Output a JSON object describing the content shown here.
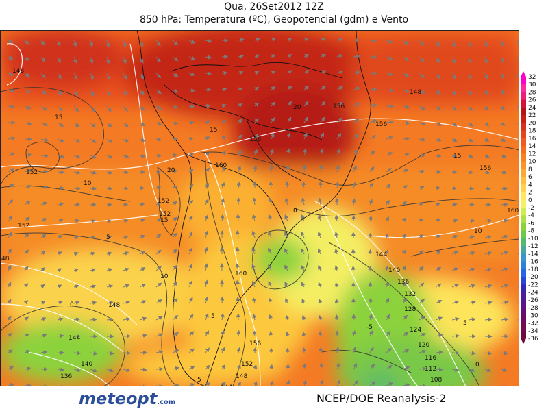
{
  "header": {
    "date_line": "Qua, 26Set2012 12Z",
    "title_line": "850 hPa: Temperatura (ºC), Geopotencial (gdm) e Vento"
  },
  "footer": {
    "logo_main": "meteopt",
    "logo_suffix": ".com",
    "credit": "NCEP/DOE  Reanalysis-2"
  },
  "colorbar": {
    "levels": [
      "32",
      "30",
      "28",
      "26",
      "24",
      "22",
      "20",
      "18",
      "16",
      "14",
      "12",
      "10",
      "8",
      "6",
      "4",
      "2",
      "0",
      "-2",
      "-4",
      "-6",
      "-8",
      "-10",
      "-12",
      "-14",
      "-16",
      "-18",
      "-20",
      "-22",
      "-24",
      "-26",
      "-28",
      "-30",
      "-32",
      "-34",
      "-36"
    ],
    "colors": [
      "#ff00c8",
      "#ff2a9e",
      "#f01e78",
      "#d2143c",
      "#b41414",
      "#c81e14",
      "#d7301e",
      "#e6461e",
      "#f05a1e",
      "#f56e1e",
      "#f8821e",
      "#fa9628",
      "#fdaa32",
      "#ffbe3c",
      "#ffd24b",
      "#ffe65a",
      "#f5f064",
      "#d2eb50",
      "#aee046",
      "#8cd23c",
      "#6ec850",
      "#55b96e",
      "#4ba5a0",
      "#3c96c8",
      "#2d82dc",
      "#2864e6",
      "#2846d2",
      "#3228b4",
      "#4b1ea0",
      "#5a148c",
      "#640f78",
      "#6e0a64",
      "#780a50",
      "#6e0a3c"
    ]
  },
  "contour_labels": {
    "temperature": [
      {
        "text": "15",
        "pos": "nw"
      },
      {
        "text": "20",
        "pos": "n"
      },
      {
        "text": "15",
        "pos": "center"
      },
      {
        "text": "10",
        "pos": "w"
      },
      {
        "text": "5",
        "pos": "w"
      },
      {
        "text": "0",
        "pos": "sw"
      },
      {
        "text": "20",
        "pos": "w-center"
      },
      {
        "text": "15",
        "pos": "w-center"
      },
      {
        "text": "10",
        "pos": "w-center"
      },
      {
        "text": "5",
        "pos": "center"
      },
      {
        "text": "0",
        "pos": "center"
      },
      {
        "text": "-5",
        "pos": "se"
      },
      {
        "text": "5",
        "pos": "e"
      },
      {
        "text": "10",
        "pos": "e"
      },
      {
        "text": "15",
        "pos": "e"
      },
      {
        "text": "0",
        "pos": "se"
      },
      {
        "text": "5",
        "pos": "s"
      }
    ],
    "geopotential": [
      {
        "text": "148"
      },
      {
        "text": "152"
      },
      {
        "text": "156"
      },
      {
        "text": "160"
      },
      {
        "text": "152"
      },
      {
        "text": "152"
      },
      {
        "text": "152"
      },
      {
        "text": "148"
      },
      {
        "text": "144"
      },
      {
        "text": "140"
      },
      {
        "text": "136"
      },
      {
        "text": "160"
      },
      {
        "text": "156"
      },
      {
        "text": "152"
      },
      {
        "text": "148"
      },
      {
        "text": "144"
      },
      {
        "text": "140"
      },
      {
        "text": "136"
      },
      {
        "text": "132"
      },
      {
        "text": "128"
      },
      {
        "text": "124"
      },
      {
        "text": "120"
      },
      {
        "text": "116"
      },
      {
        "text": "112"
      },
      {
        "text": "108"
      },
      {
        "text": "156"
      },
      {
        "text": "156"
      },
      {
        "text": "156"
      },
      {
        "text": "160"
      },
      {
        "text": "148"
      },
      {
        "text": "144"
      },
      {
        "text": "48"
      }
    ]
  }
}
